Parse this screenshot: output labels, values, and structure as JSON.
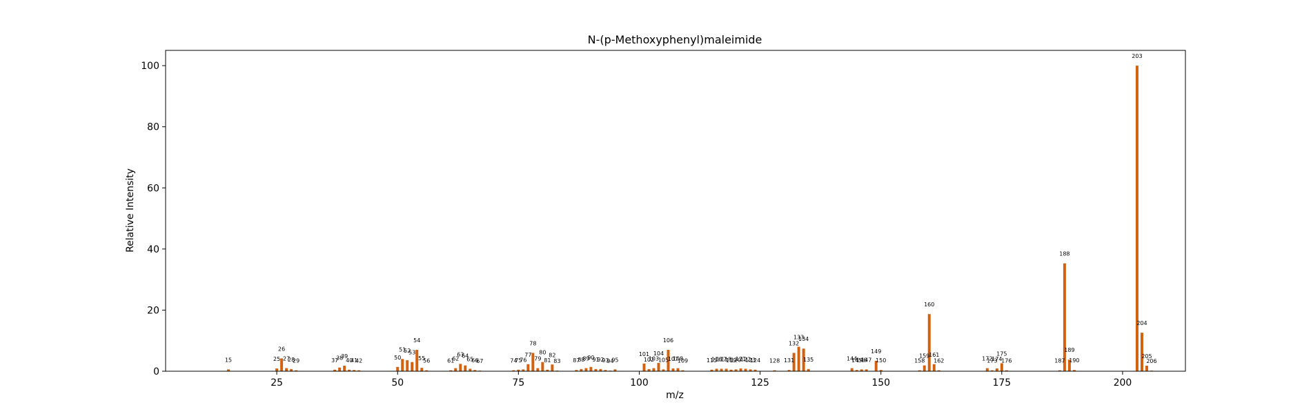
{
  "chart_data": {
    "type": "bar",
    "title": "N-(p-Methoxyphenyl)maleimide",
    "xlabel": "m/z",
    "ylabel": "Relative Intensity",
    "xlim": [
      2,
      213
    ],
    "ylim": [
      0,
      105
    ],
    "xticks": [
      25,
      50,
      75,
      100,
      125,
      150,
      175,
      200
    ],
    "yticks": [
      0,
      20,
      40,
      60,
      80,
      100
    ],
    "bar_color": "#d2620f",
    "grid": false,
    "legend": "none",
    "peaks": [
      {
        "mz": 15,
        "intensity": 0.6
      },
      {
        "mz": 25,
        "intensity": 0.9
      },
      {
        "mz": 26,
        "intensity": 4.2
      },
      {
        "mz": 27,
        "intensity": 1.0
      },
      {
        "mz": 28,
        "intensity": 0.7
      },
      {
        "mz": 29,
        "intensity": 0.3
      },
      {
        "mz": 37,
        "intensity": 0.5
      },
      {
        "mz": 38,
        "intensity": 1.2
      },
      {
        "mz": 39,
        "intensity": 1.8
      },
      {
        "mz": 40,
        "intensity": 0.5
      },
      {
        "mz": 41,
        "intensity": 0.4
      },
      {
        "mz": 42,
        "intensity": 0.3
      },
      {
        "mz": 50,
        "intensity": 1.4
      },
      {
        "mz": 51,
        "intensity": 4.0
      },
      {
        "mz": 52,
        "intensity": 3.6
      },
      {
        "mz": 53,
        "intensity": 3.0
      },
      {
        "mz": 54,
        "intensity": 7.0
      },
      {
        "mz": 55,
        "intensity": 1.1
      },
      {
        "mz": 56,
        "intensity": 0.3
      },
      {
        "mz": 61,
        "intensity": 0.3
      },
      {
        "mz": 62,
        "intensity": 1.0
      },
      {
        "mz": 63,
        "intensity": 2.4
      },
      {
        "mz": 64,
        "intensity": 1.9
      },
      {
        "mz": 65,
        "intensity": 0.8
      },
      {
        "mz": 66,
        "intensity": 0.4
      },
      {
        "mz": 67,
        "intensity": 0.2
      },
      {
        "mz": 74,
        "intensity": 0.3
      },
      {
        "mz": 75,
        "intensity": 0.5
      },
      {
        "mz": 76,
        "intensity": 0.6
      },
      {
        "mz": 77,
        "intensity": 2.3
      },
      {
        "mz": 78,
        "intensity": 6.0
      },
      {
        "mz": 79,
        "intensity": 1.0
      },
      {
        "mz": 80,
        "intensity": 3.0
      },
      {
        "mz": 81,
        "intensity": 0.5
      },
      {
        "mz": 82,
        "intensity": 2.2
      },
      {
        "mz": 83,
        "intensity": 0.2
      },
      {
        "mz": 87,
        "intensity": 0.4
      },
      {
        "mz": 88,
        "intensity": 0.7
      },
      {
        "mz": 89,
        "intensity": 1.0
      },
      {
        "mz": 90,
        "intensity": 1.4
      },
      {
        "mz": 91,
        "intensity": 0.7
      },
      {
        "mz": 92,
        "intensity": 0.7
      },
      {
        "mz": 93,
        "intensity": 0.4
      },
      {
        "mz": 94,
        "intensity": 0.2
      },
      {
        "mz": 95,
        "intensity": 0.6
      },
      {
        "mz": 101,
        "intensity": 2.5
      },
      {
        "mz": 102,
        "intensity": 0.7
      },
      {
        "mz": 103,
        "intensity": 1.0
      },
      {
        "mz": 104,
        "intensity": 2.7
      },
      {
        "mz": 105,
        "intensity": 0.6
      },
      {
        "mz": 106,
        "intensity": 7.0
      },
      {
        "mz": 107,
        "intensity": 0.9
      },
      {
        "mz": 108,
        "intensity": 1.0
      },
      {
        "mz": 109,
        "intensity": 0.3
      },
      {
        "mz": 115,
        "intensity": 0.5
      },
      {
        "mz": 116,
        "intensity": 0.8
      },
      {
        "mz": 117,
        "intensity": 0.8
      },
      {
        "mz": 118,
        "intensity": 0.8
      },
      {
        "mz": 119,
        "intensity": 0.5
      },
      {
        "mz": 120,
        "intensity": 0.6
      },
      {
        "mz": 121,
        "intensity": 0.9
      },
      {
        "mz": 122,
        "intensity": 0.8
      },
      {
        "mz": 123,
        "intensity": 0.6
      },
      {
        "mz": 124,
        "intensity": 0.5
      },
      {
        "mz": 128,
        "intensity": 0.3
      },
      {
        "mz": 131,
        "intensity": 0.4
      },
      {
        "mz": 132,
        "intensity": 6.0
      },
      {
        "mz": 133,
        "intensity": 8.0
      },
      {
        "mz": 134,
        "intensity": 7.4
      },
      {
        "mz": 135,
        "intensity": 0.7
      },
      {
        "mz": 144,
        "intensity": 1.0
      },
      {
        "mz": 145,
        "intensity": 0.4
      },
      {
        "mz": 146,
        "intensity": 0.6
      },
      {
        "mz": 147,
        "intensity": 0.6
      },
      {
        "mz": 149,
        "intensity": 3.4
      },
      {
        "mz": 150,
        "intensity": 0.4
      },
      {
        "mz": 158,
        "intensity": 0.3
      },
      {
        "mz": 159,
        "intensity": 1.9
      },
      {
        "mz": 160,
        "intensity": 18.7
      },
      {
        "mz": 161,
        "intensity": 2.3
      },
      {
        "mz": 162,
        "intensity": 0.3
      },
      {
        "mz": 172,
        "intensity": 1.0
      },
      {
        "mz": 173,
        "intensity": 0.3
      },
      {
        "mz": 174,
        "intensity": 0.9
      },
      {
        "mz": 175,
        "intensity": 2.6
      },
      {
        "mz": 176,
        "intensity": 0.3
      },
      {
        "mz": 187,
        "intensity": 0.3
      },
      {
        "mz": 188,
        "intensity": 35.3
      },
      {
        "mz": 189,
        "intensity": 3.8
      },
      {
        "mz": 190,
        "intensity": 0.4
      },
      {
        "mz": 203,
        "intensity": 100.0
      },
      {
        "mz": 204,
        "intensity": 12.6
      },
      {
        "mz": 205,
        "intensity": 1.8
      },
      {
        "mz": 206,
        "intensity": 0.2
      }
    ]
  }
}
